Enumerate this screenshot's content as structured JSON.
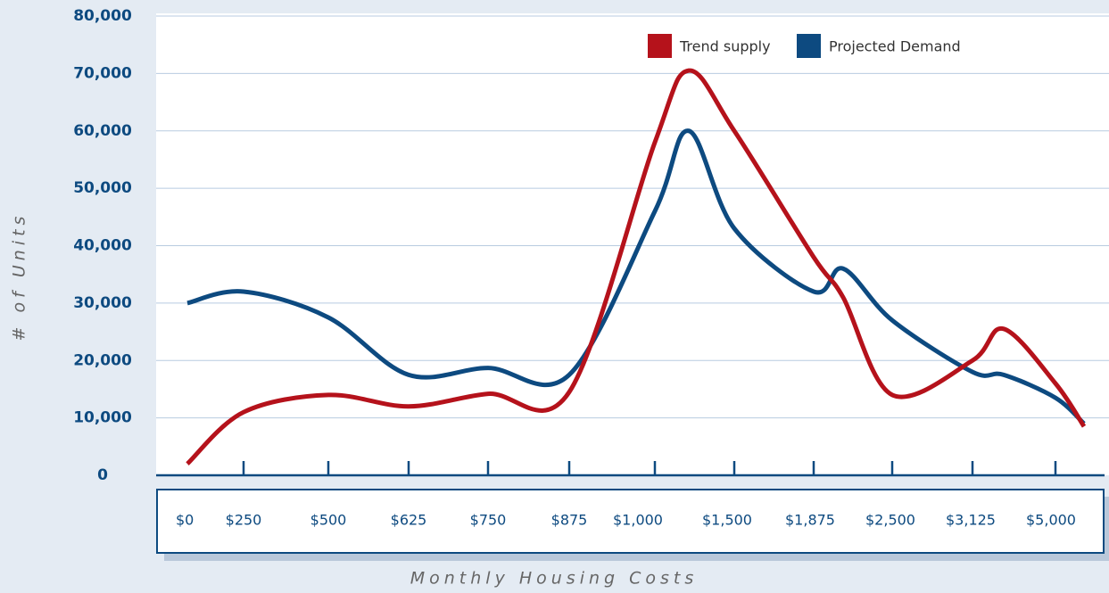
{
  "chart_data": {
    "type": "line",
    "x_label": "Monthly Housing Costs",
    "y_label": "# of Units",
    "categories": [
      "$0",
      "$250",
      "$500",
      "$625",
      "$750",
      "$875",
      "$1,000",
      null,
      "$1,500",
      "$1,875",
      null,
      "$2,500",
      "$3,125",
      null,
      "$5,000",
      null
    ],
    "series": [
      {
        "name": "Trend supply",
        "color": "#b5121b",
        "values": [
          2000,
          11000,
          14000,
          12000,
          14200,
          14500,
          58000,
          70500,
          60000,
          38000,
          31000,
          14000,
          20000,
          25500,
          16000,
          8500
        ]
      },
      {
        "name": "Projected Demand",
        "color": "#0d4a80",
        "values": [
          30000,
          32000,
          27500,
          17500,
          18700,
          17500,
          46000,
          60000,
          43000,
          32000,
          36000,
          27000,
          18000,
          17500,
          13500,
          9000
        ]
      }
    ],
    "ylim": [
      0,
      80000
    ],
    "yticks": [
      {
        "value": 0,
        "label": "0"
      },
      {
        "value": 10000,
        "label": "10,000"
      },
      {
        "value": 20000,
        "label": "20,000"
      },
      {
        "value": 30000,
        "label": "30,000"
      },
      {
        "value": 40000,
        "label": "40,000"
      },
      {
        "value": 50000,
        "label": "50,000"
      },
      {
        "value": 60000,
        "label": "60,000"
      },
      {
        "value": 70000,
        "label": "70,000"
      },
      {
        "value": 80000,
        "label": "80,000"
      }
    ],
    "grid": true,
    "legend": "top-right"
  }
}
